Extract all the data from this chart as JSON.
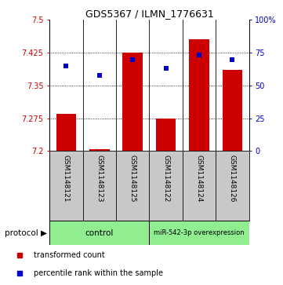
{
  "title": "GDS5367 / ILMN_1776631",
  "samples": [
    "GSM1148121",
    "GSM1148123",
    "GSM1148125",
    "GSM1148122",
    "GSM1148124",
    "GSM1148126"
  ],
  "red_values": [
    7.285,
    7.205,
    7.425,
    7.275,
    7.455,
    7.385
  ],
  "blue_values": [
    65,
    58,
    70,
    63,
    73,
    70
  ],
  "ylim_left": [
    7.2,
    7.5
  ],
  "ylim_right": [
    0,
    100
  ],
  "yticks_left": [
    7.2,
    7.275,
    7.35,
    7.425,
    7.5
  ],
  "yticks_right": [
    0,
    25,
    50,
    75,
    100
  ],
  "ytick_labels_left": [
    "7.2",
    "7.275",
    "7.35",
    "7.425",
    "7.5"
  ],
  "ytick_labels_right": [
    "0",
    "25",
    "50",
    "75",
    "100%"
  ],
  "control_label": "control",
  "mir_label": "miR-542-3p overexpression",
  "protocol_label": "protocol",
  "legend_red": "transformed count",
  "legend_blue": "percentile rank within the sample",
  "bar_color": "#CC0000",
  "dot_color": "#0000CC",
  "background_plot": "#FFFFFF",
  "background_xlabel": "#C8C8C8",
  "group_color": "#90EE90",
  "bar_width": 0.6,
  "base_value": 7.2
}
